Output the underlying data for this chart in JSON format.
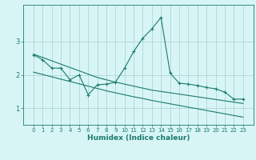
{
  "xlabel": "Humidex (Indice chaleur)",
  "x_values": [
    0,
    1,
    2,
    3,
    4,
    5,
    6,
    7,
    8,
    9,
    10,
    11,
    12,
    13,
    14,
    15,
    16,
    17,
    18,
    19,
    20,
    21,
    22,
    23
  ],
  "line1": [
    2.6,
    2.45,
    2.2,
    2.2,
    1.85,
    2.0,
    1.4,
    1.7,
    1.72,
    1.78,
    2.2,
    2.7,
    3.1,
    3.38,
    3.72,
    2.05,
    1.75,
    1.72,
    1.68,
    1.62,
    1.58,
    1.48,
    1.27,
    1.27
  ],
  "line2": [
    2.62,
    2.52,
    2.42,
    2.32,
    2.22,
    2.12,
    2.02,
    1.92,
    1.85,
    1.78,
    1.72,
    1.66,
    1.6,
    1.54,
    1.5,
    1.46,
    1.42,
    1.38,
    1.34,
    1.3,
    1.26,
    1.22,
    1.18,
    1.14
  ],
  "line3": [
    2.08,
    2.01,
    1.94,
    1.87,
    1.8,
    1.73,
    1.66,
    1.59,
    1.52,
    1.46,
    1.4,
    1.34,
    1.29,
    1.23,
    1.18,
    1.13,
    1.08,
    1.03,
    0.98,
    0.93,
    0.88,
    0.83,
    0.78,
    0.73
  ],
  "line_color": "#1a7a6e",
  "bg_color": "#d8f5f5",
  "grid_color": "#b0d5d5",
  "ylim": [
    0.5,
    4.1
  ],
  "yticks": [
    1,
    2,
    3
  ],
  "xticks": [
    0,
    1,
    2,
    3,
    4,
    5,
    6,
    7,
    8,
    9,
    10,
    11,
    12,
    13,
    14,
    15,
    16,
    17,
    18,
    19,
    20,
    21,
    22,
    23
  ],
  "xlabel_fontsize": 6.5,
  "tick_fontsize": 5.0
}
